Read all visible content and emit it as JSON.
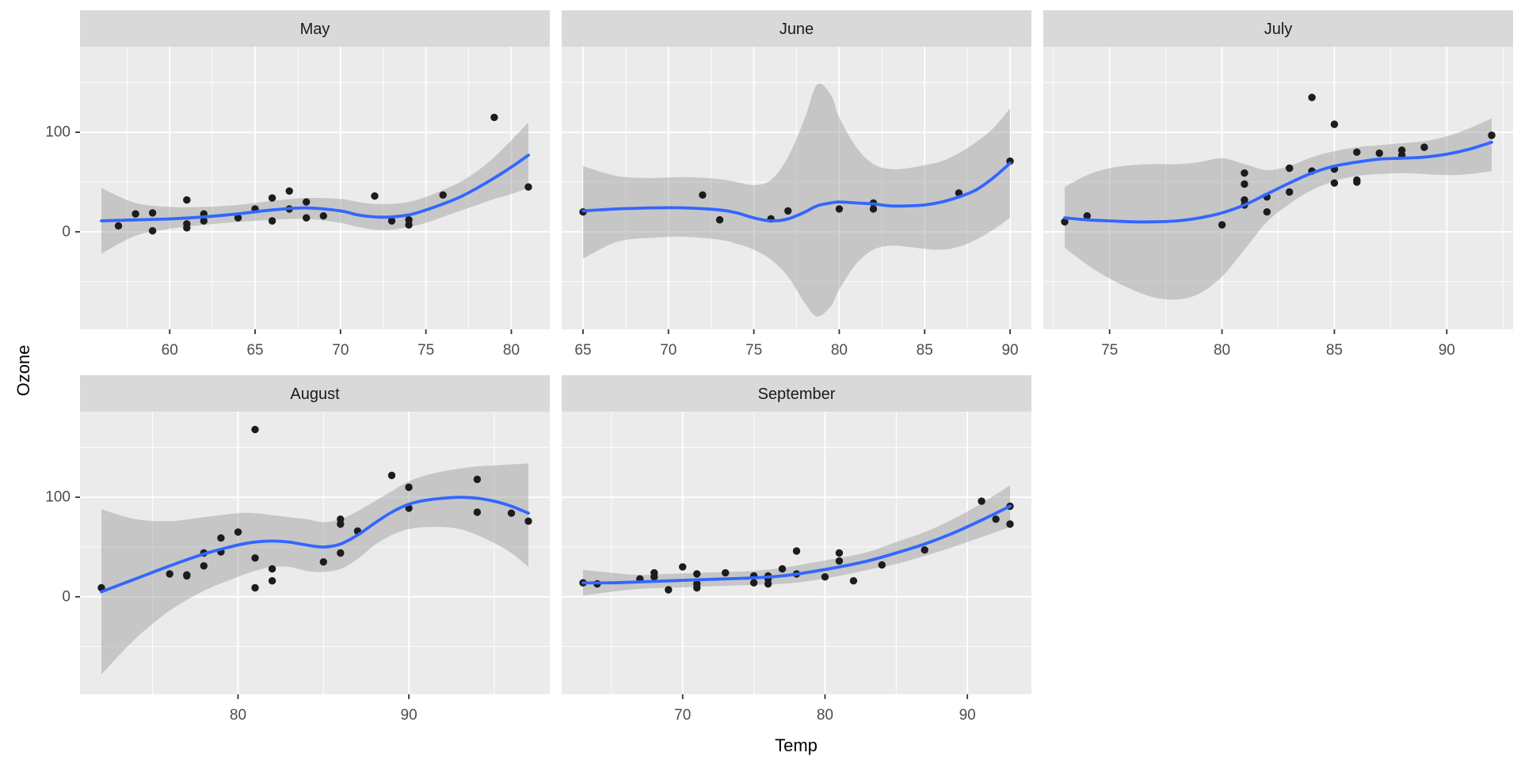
{
  "chart_data": {
    "type": "scatter",
    "title": "",
    "xlabel": "Temp",
    "ylabel": "Ozone",
    "y_domain": [
      -98,
      186
    ],
    "y_major_ticks": [
      0,
      100
    ],
    "legend": "none",
    "grid": "on",
    "colors": {
      "panel_bg": "#EBEBEB",
      "strip_bg": "#D9D9D9",
      "grid": "#FFFFFF",
      "point": "#1c1c1c",
      "smooth_line": "#3366FF",
      "ribbon": "rgba(153,153,153,0.45)",
      "axis_text": "#4D4D4D",
      "tick_mark": "#333333",
      "strip_text": "#1A1A1A",
      "title_text": "#000000"
    },
    "facets": [
      {
        "label": "May",
        "x_domain": [
          54.75,
          82.25
        ],
        "x_major_ticks": [
          60,
          65,
          70,
          75,
          80
        ],
        "points": [
          [
            67,
            41
          ],
          [
            72,
            36
          ],
          [
            74,
            12
          ],
          [
            62,
            18
          ],
          [
            65,
            23
          ],
          [
            59,
            19
          ],
          [
            61,
            8
          ],
          [
            74,
            7
          ],
          [
            69,
            16
          ],
          [
            66,
            11
          ],
          [
            68,
            14
          ],
          [
            58,
            18
          ],
          [
            64,
            14
          ],
          [
            66,
            34
          ],
          [
            57,
            6
          ],
          [
            68,
            30
          ],
          [
            62,
            11
          ],
          [
            59,
            1
          ],
          [
            73,
            11
          ],
          [
            61,
            4
          ],
          [
            61,
            32
          ],
          [
            67,
            23
          ],
          [
            81,
            45
          ],
          [
            79,
            115
          ],
          [
            76,
            37
          ]
        ],
        "smooth": {
          "x": [
            56,
            58,
            60,
            62,
            64,
            66,
            68,
            70,
            71,
            72,
            73,
            74,
            75,
            76,
            77,
            78,
            79,
            80,
            81
          ],
          "y": [
            11,
            12,
            13,
            15,
            18,
            22,
            24,
            21,
            17,
            15,
            15,
            17,
            22,
            28,
            35,
            44,
            54,
            65,
            77
          ],
          "lower": [
            -22,
            -4,
            3,
            7,
            10,
            12,
            13,
            9,
            5,
            2,
            2,
            5,
            9,
            15,
            21,
            27,
            33,
            38,
            44
          ],
          "upper": [
            44,
            29,
            25,
            25,
            27,
            31,
            34,
            33,
            30,
            28,
            28,
            30,
            35,
            42,
            50,
            61,
            75,
            92,
            110
          ]
        }
      },
      {
        "label": "June",
        "x_domain": [
          63.75,
          91.25
        ],
        "x_major_ticks": [
          65,
          70,
          75,
          80,
          85,
          90
        ],
        "points": [
          [
            82,
            29
          ],
          [
            90,
            71
          ],
          [
            87,
            39
          ],
          [
            82,
            23
          ],
          [
            77,
            21
          ],
          [
            72,
            37
          ],
          [
            65,
            20
          ],
          [
            73,
            12
          ],
          [
            76,
            13
          ],
          [
            80,
            23
          ]
        ],
        "smooth": {
          "x": [
            65,
            67,
            69,
            71,
            73,
            74,
            75,
            76,
            77,
            78,
            78.7,
            79.5,
            80,
            81,
            82,
            83,
            84,
            85,
            86,
            87,
            88,
            89,
            90
          ],
          "y": [
            21,
            23,
            24,
            24,
            22,
            19,
            14,
            11,
            13,
            20,
            26,
            29,
            30,
            29,
            28,
            26,
            26,
            27,
            30,
            35,
            42,
            54,
            69
          ],
          "lower": [
            -27,
            -10,
            -6,
            -5,
            -8,
            -12,
            -18,
            -28,
            -45,
            -72,
            -85,
            -75,
            -58,
            -32,
            -18,
            -14,
            -15,
            -17,
            -18,
            -15,
            -8,
            2,
            14
          ],
          "upper": [
            66,
            56,
            54,
            55,
            53,
            50,
            47,
            52,
            75,
            115,
            148,
            138,
            115,
            85,
            68,
            63,
            64,
            67,
            71,
            79,
            90,
            104,
            124
          ]
        }
      },
      {
        "label": "July",
        "x_domain": [
          72.05,
          92.95
        ],
        "x_major_ticks": [
          75,
          80,
          85,
          90
        ],
        "points": [
          [
            84,
            135
          ],
          [
            85,
            49
          ],
          [
            81,
            32
          ],
          [
            83,
            64
          ],
          [
            83,
            40
          ],
          [
            88,
            77
          ],
          [
            92,
            97
          ],
          [
            92,
            97
          ],
          [
            89,
            85
          ],
          [
            73,
            10
          ],
          [
            81,
            27
          ],
          [
            80,
            7
          ],
          [
            81,
            48
          ],
          [
            82,
            35
          ],
          [
            84,
            61
          ],
          [
            87,
            79
          ],
          [
            85,
            63
          ],
          [
            74,
            16
          ],
          [
            86,
            80
          ],
          [
            85,
            108
          ],
          [
            82,
            20
          ],
          [
            86,
            52
          ],
          [
            88,
            82
          ],
          [
            86,
            50
          ],
          [
            83,
            64
          ],
          [
            81,
            59
          ]
        ],
        "smooth": {
          "x": [
            73,
            74,
            75,
            76,
            77,
            78,
            79,
            80,
            81,
            82,
            83,
            84,
            85,
            86,
            87,
            88,
            89,
            90,
            91,
            92
          ],
          "y": [
            14,
            12,
            11,
            10,
            10,
            11,
            14,
            19,
            27,
            38,
            49,
            59,
            66,
            70,
            73,
            74,
            75,
            78,
            83,
            90
          ],
          "lower": [
            -16,
            -33,
            -47,
            -58,
            -66,
            -68,
            -62,
            -45,
            -18,
            10,
            28,
            42,
            51,
            56,
            58,
            59,
            58,
            57,
            58,
            61
          ],
          "upper": [
            45,
            57,
            64,
            67,
            68,
            68,
            70,
            74,
            68,
            62,
            66,
            75,
            81,
            85,
            87,
            89,
            91,
            96,
            104,
            114
          ]
        }
      },
      {
        "label": "August",
        "x_domain": [
          70.75,
          98.25
        ],
        "x_major_ticks": [
          80,
          90
        ],
        "points": [
          [
            81,
            39
          ],
          [
            81,
            9
          ],
          [
            82,
            16
          ],
          [
            86,
            78
          ],
          [
            85,
            35
          ],
          [
            87,
            66
          ],
          [
            89,
            122
          ],
          [
            90,
            89
          ],
          [
            90,
            110
          ],
          [
            86,
            44
          ],
          [
            82,
            28
          ],
          [
            80,
            65
          ],
          [
            77,
            22
          ],
          [
            79,
            59
          ],
          [
            76,
            23
          ],
          [
            78,
            31
          ],
          [
            78,
            44
          ],
          [
            77,
            21
          ],
          [
            72,
            9
          ],
          [
            79,
            45
          ],
          [
            81,
            168
          ],
          [
            86,
            73
          ],
          [
            97,
            76
          ],
          [
            94,
            118
          ],
          [
            96,
            84
          ],
          [
            94,
            85
          ]
        ],
        "smooth": {
          "x": [
            72,
            74,
            76,
            78,
            80,
            81,
            82,
            83,
            84,
            85,
            86,
            87,
            88,
            89,
            90,
            91,
            92,
            93,
            94,
            95,
            96,
            97
          ],
          "y": [
            5,
            18,
            31,
            43,
            52,
            55,
            56,
            55,
            52,
            50,
            53,
            62,
            74,
            85,
            93,
            97,
            99,
            100,
            99,
            96,
            91,
            84
          ],
          "lower": [
            -78,
            -42,
            -14,
            6,
            20,
            26,
            30,
            30,
            26,
            25,
            28,
            38,
            52,
            62,
            68,
            70,
            70,
            68,
            62,
            54,
            44,
            30
          ],
          "upper": [
            88,
            78,
            76,
            80,
            84,
            84,
            82,
            80,
            78,
            75,
            78,
            86,
            96,
            106,
            116,
            122,
            126,
            129,
            131,
            132,
            133,
            134
          ]
        }
      },
      {
        "label": "September",
        "x_domain": [
          61.5,
          94.5
        ],
        "x_major_ticks": [
          70,
          80,
          90
        ],
        "points": [
          [
            91,
            96
          ],
          [
            92,
            78
          ],
          [
            93,
            73
          ],
          [
            93,
            91
          ],
          [
            87,
            47
          ],
          [
            84,
            32
          ],
          [
            80,
            20
          ],
          [
            78,
            23
          ],
          [
            75,
            21
          ],
          [
            73,
            24
          ],
          [
            81,
            44
          ],
          [
            76,
            21
          ],
          [
            77,
            28
          ],
          [
            71,
            9
          ],
          [
            71,
            13
          ],
          [
            78,
            46
          ],
          [
            67,
            18
          ],
          [
            76,
            13
          ],
          [
            68,
            24
          ],
          [
            82,
            16
          ],
          [
            64,
            13
          ],
          [
            71,
            23
          ],
          [
            81,
            36
          ],
          [
            69,
            7
          ],
          [
            63,
            14
          ],
          [
            70,
            30
          ],
          [
            75,
            14
          ],
          [
            76,
            18
          ],
          [
            68,
            20
          ]
        ],
        "smooth": {
          "x": [
            63,
            65,
            67,
            69,
            71,
            73,
            75,
            77,
            79,
            81,
            83,
            85,
            87,
            89,
            91,
            93
          ],
          "y": [
            14,
            14,
            15,
            16,
            17,
            18,
            19,
            21,
            25,
            30,
            36,
            44,
            53,
            64,
            77,
            91
          ],
          "lower": [
            1,
            5,
            8,
            9,
            10,
            11,
            12,
            13,
            16,
            21,
            27,
            33,
            41,
            50,
            60,
            70
          ],
          "upper": [
            27,
            24,
            22,
            23,
            24,
            25,
            26,
            29,
            34,
            39,
            45,
            55,
            65,
            78,
            94,
            112
          ]
        }
      }
    ]
  }
}
